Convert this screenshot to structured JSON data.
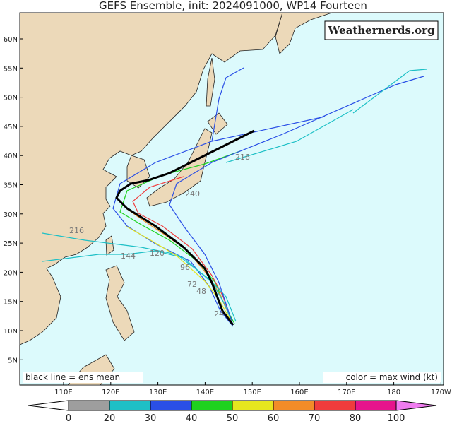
{
  "title": "GEFS Ensemble, init: 2024091000, WP14 Fourteen",
  "watermark": "Weathernerds.org",
  "lat_labels": [
    "60N",
    "55N",
    "50N",
    "45N",
    "40N",
    "35N",
    "30N",
    "25N",
    "20N",
    "15N",
    "10N",
    "5N"
  ],
  "lon_labels": [
    "110E",
    "120E",
    "130E",
    "140E",
    "150E",
    "160E",
    "170E",
    "180",
    "170W"
  ],
  "legend_left": "black line = ens mean",
  "legend_right": "color = max wind (kt)",
  "hour_labels": [
    "216",
    "240",
    "216",
    "144",
    "120",
    "96",
    "72",
    "48",
    "24"
  ],
  "colorbar": {
    "ticks": [
      0,
      20,
      30,
      40,
      50,
      60,
      70,
      80,
      100
    ],
    "colors": [
      "#9e9e9e",
      "#1ec0c6",
      "#2a4fe6",
      "#1ed21e",
      "#e6e61e",
      "#f28c28",
      "#f03c3c",
      "#e6148c"
    ],
    "under_color": "#ffffff",
    "over_color": "#f07cf0"
  }
}
